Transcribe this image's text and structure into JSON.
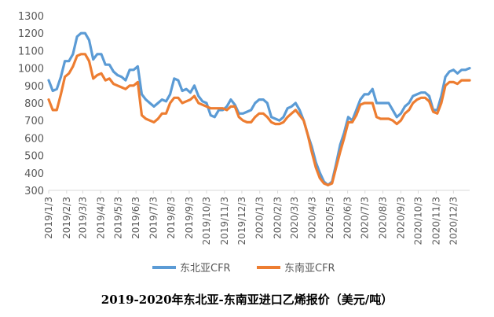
{
  "chart_data": {
    "type": "line",
    "title": "",
    "xlabel": "",
    "ylabel": "",
    "ylim": [
      300,
      1300
    ],
    "yticks": [
      300,
      400,
      500,
      600,
      700,
      800,
      900,
      1000,
      1100,
      1200,
      1300
    ],
    "grid": "none",
    "legend_position": "bottom",
    "x_tick_labels": [
      "2019/1/3",
      "2019/2/3",
      "2019/3/3",
      "2019/4/3",
      "2019/5/3",
      "2019/6/3",
      "2019/7/3",
      "2019/8/3",
      "2019/9/3",
      "2019/10/3",
      "2019/11/3",
      "2019/12/3",
      "2020/1/3",
      "2020/2/3",
      "2020/3/3",
      "2020/4/3",
      "2020/5/3",
      "2020/6/3",
      "2020/7/3",
      "2020/8/3",
      "2020/9/3",
      "2020/10/3",
      "2020/11/3",
      "2020/12/3"
    ],
    "series": [
      {
        "name": "东北亚CFR",
        "color": "#5B9BD5",
        "points": [
          [
            "2019/1/3",
            930
          ],
          [
            "2019/1/10",
            870
          ],
          [
            "2019/1/17",
            880
          ],
          [
            "2019/1/24",
            950
          ],
          [
            "2019/1/31",
            1040
          ],
          [
            "2019/2/7",
            1040
          ],
          [
            "2019/2/14",
            1080
          ],
          [
            "2019/2/21",
            1180
          ],
          [
            "2019/2/28",
            1200
          ],
          [
            "2019/3/7",
            1200
          ],
          [
            "2019/3/14",
            1160
          ],
          [
            "2019/3/21",
            1050
          ],
          [
            "2019/3/28",
            1080
          ],
          [
            "2019/4/4",
            1080
          ],
          [
            "2019/4/11",
            1020
          ],
          [
            "2019/4/18",
            1020
          ],
          [
            "2019/4/25",
            980
          ],
          [
            "2019/5/2",
            960
          ],
          [
            "2019/5/9",
            950
          ],
          [
            "2019/5/16",
            930
          ],
          [
            "2019/5/23",
            990
          ],
          [
            "2019/5/30",
            990
          ],
          [
            "2019/6/6",
            1010
          ],
          [
            "2019/6/13",
            850
          ],
          [
            "2019/6/20",
            820
          ],
          [
            "2019/6/27",
            800
          ],
          [
            "2019/7/4",
            780
          ],
          [
            "2019/7/11",
            800
          ],
          [
            "2019/7/18",
            820
          ],
          [
            "2019/7/25",
            810
          ],
          [
            "2019/8/1",
            850
          ],
          [
            "2019/8/8",
            940
          ],
          [
            "2019/8/15",
            930
          ],
          [
            "2019/8/22",
            870
          ],
          [
            "2019/8/29",
            880
          ],
          [
            "2019/9/5",
            860
          ],
          [
            "2019/9/12",
            900
          ],
          [
            "2019/9/19",
            840
          ],
          [
            "2019/9/26",
            810
          ],
          [
            "2019/10/3",
            800
          ],
          [
            "2019/10/10",
            730
          ],
          [
            "2019/10/17",
            720
          ],
          [
            "2019/10/24",
            760
          ],
          [
            "2019/10/31",
            760
          ],
          [
            "2019/11/7",
            780
          ],
          [
            "2019/11/14",
            820
          ],
          [
            "2019/11/21",
            790
          ],
          [
            "2019/11/28",
            740
          ],
          [
            "2019/12/5",
            740
          ],
          [
            "2019/12/12",
            750
          ],
          [
            "2019/12/19",
            760
          ],
          [
            "2019/12/26",
            800
          ],
          [
            "2020/1/2",
            820
          ],
          [
            "2020/1/9",
            820
          ],
          [
            "2020/1/16",
            800
          ],
          [
            "2020/1/23",
            720
          ],
          [
            "2020/1/30",
            710
          ],
          [
            "2020/2/6",
            700
          ],
          [
            "2020/2/13",
            720
          ],
          [
            "2020/2/20",
            770
          ],
          [
            "2020/2/27",
            780
          ],
          [
            "2020/3/5",
            800
          ],
          [
            "2020/3/12",
            760
          ],
          [
            "2020/3/19",
            700
          ],
          [
            "2020/3/26",
            620
          ],
          [
            "2020/4/2",
            550
          ],
          [
            "2020/4/9",
            460
          ],
          [
            "2020/4/16",
            400
          ],
          [
            "2020/4/23",
            350
          ],
          [
            "2020/4/30",
            330
          ],
          [
            "2020/5/7",
            350
          ],
          [
            "2020/5/14",
            450
          ],
          [
            "2020/5/21",
            560
          ],
          [
            "2020/5/28",
            630
          ],
          [
            "2020/6/4",
            720
          ],
          [
            "2020/6/11",
            700
          ],
          [
            "2020/6/18",
            760
          ],
          [
            "2020/6/25",
            820
          ],
          [
            "2020/7/2",
            850
          ],
          [
            "2020/7/9",
            850
          ],
          [
            "2020/7/16",
            880
          ],
          [
            "2020/7/23",
            800
          ],
          [
            "2020/7/30",
            800
          ],
          [
            "2020/8/6",
            800
          ],
          [
            "2020/8/13",
            800
          ],
          [
            "2020/8/20",
            760
          ],
          [
            "2020/8/27",
            720
          ],
          [
            "2020/9/3",
            740
          ],
          [
            "2020/9/10",
            780
          ],
          [
            "2020/9/17",
            800
          ],
          [
            "2020/9/24",
            840
          ],
          [
            "2020/10/1",
            850
          ],
          [
            "2020/10/8",
            860
          ],
          [
            "2020/10/15",
            860
          ],
          [
            "2020/10/22",
            840
          ],
          [
            "2020/10/29",
            760
          ],
          [
            "2020/11/5",
            760
          ],
          [
            "2020/11/12",
            840
          ],
          [
            "2020/11/19",
            950
          ],
          [
            "2020/11/26",
            980
          ],
          [
            "2020/12/3",
            990
          ],
          [
            "2020/12/10",
            970
          ],
          [
            "2020/12/17",
            990
          ],
          [
            "2020/12/24",
            990
          ],
          [
            "2020/12/31",
            1000
          ]
        ]
      },
      {
        "name": "东南亚CFR",
        "color": "#ED7D31",
        "points": [
          [
            "2019/1/3",
            820
          ],
          [
            "2019/1/10",
            760
          ],
          [
            "2019/1/17",
            760
          ],
          [
            "2019/1/24",
            850
          ],
          [
            "2019/1/31",
            950
          ],
          [
            "2019/2/7",
            970
          ],
          [
            "2019/2/14",
            1010
          ],
          [
            "2019/2/21",
            1070
          ],
          [
            "2019/2/28",
            1080
          ],
          [
            "2019/3/7",
            1080
          ],
          [
            "2019/3/14",
            1040
          ],
          [
            "2019/3/21",
            940
          ],
          [
            "2019/3/28",
            960
          ],
          [
            "2019/4/4",
            970
          ],
          [
            "2019/4/11",
            930
          ],
          [
            "2019/4/18",
            940
          ],
          [
            "2019/4/25",
            910
          ],
          [
            "2019/5/2",
            900
          ],
          [
            "2019/5/9",
            890
          ],
          [
            "2019/5/16",
            880
          ],
          [
            "2019/5/23",
            900
          ],
          [
            "2019/5/30",
            900
          ],
          [
            "2019/6/6",
            920
          ],
          [
            "2019/6/13",
            730
          ],
          [
            "2019/6/20",
            710
          ],
          [
            "2019/6/27",
            700
          ],
          [
            "2019/7/4",
            690
          ],
          [
            "2019/7/11",
            710
          ],
          [
            "2019/7/18",
            740
          ],
          [
            "2019/7/25",
            740
          ],
          [
            "2019/8/1",
            800
          ],
          [
            "2019/8/8",
            830
          ],
          [
            "2019/8/15",
            830
          ],
          [
            "2019/8/22",
            800
          ],
          [
            "2019/8/29",
            810
          ],
          [
            "2019/9/5",
            820
          ],
          [
            "2019/9/12",
            840
          ],
          [
            "2019/9/19",
            800
          ],
          [
            "2019/9/26",
            790
          ],
          [
            "2019/10/3",
            780
          ],
          [
            "2019/10/10",
            770
          ],
          [
            "2019/10/17",
            770
          ],
          [
            "2019/10/24",
            770
          ],
          [
            "2019/10/31",
            770
          ],
          [
            "2019/11/7",
            760
          ],
          [
            "2019/11/14",
            780
          ],
          [
            "2019/11/21",
            780
          ],
          [
            "2019/11/28",
            720
          ],
          [
            "2019/12/5",
            700
          ],
          [
            "2019/12/12",
            690
          ],
          [
            "2019/12/19",
            690
          ],
          [
            "2019/12/26",
            720
          ],
          [
            "2020/1/2",
            740
          ],
          [
            "2020/1/9",
            740
          ],
          [
            "2020/1/16",
            720
          ],
          [
            "2020/1/23",
            690
          ],
          [
            "2020/1/30",
            680
          ],
          [
            "2020/2/6",
            680
          ],
          [
            "2020/2/13",
            690
          ],
          [
            "2020/2/20",
            720
          ],
          [
            "2020/2/27",
            740
          ],
          [
            "2020/3/5",
            760
          ],
          [
            "2020/3/12",
            730
          ],
          [
            "2020/3/19",
            700
          ],
          [
            "2020/3/26",
            620
          ],
          [
            "2020/4/2",
            520
          ],
          [
            "2020/4/9",
            430
          ],
          [
            "2020/4/16",
            370
          ],
          [
            "2020/4/23",
            340
          ],
          [
            "2020/4/30",
            330
          ],
          [
            "2020/5/7",
            340
          ],
          [
            "2020/5/14",
            430
          ],
          [
            "2020/5/21",
            520
          ],
          [
            "2020/5/28",
            600
          ],
          [
            "2020/6/4",
            690
          ],
          [
            "2020/6/11",
            690
          ],
          [
            "2020/6/18",
            730
          ],
          [
            "2020/6/25",
            790
          ],
          [
            "2020/7/2",
            800
          ],
          [
            "2020/7/9",
            800
          ],
          [
            "2020/7/16",
            800
          ],
          [
            "2020/7/23",
            720
          ],
          [
            "2020/7/30",
            710
          ],
          [
            "2020/8/6",
            710
          ],
          [
            "2020/8/13",
            710
          ],
          [
            "2020/8/20",
            700
          ],
          [
            "2020/8/27",
            680
          ],
          [
            "2020/9/3",
            700
          ],
          [
            "2020/9/10",
            740
          ],
          [
            "2020/9/17",
            760
          ],
          [
            "2020/9/24",
            800
          ],
          [
            "2020/10/1",
            820
          ],
          [
            "2020/10/8",
            830
          ],
          [
            "2020/10/15",
            830
          ],
          [
            "2020/10/22",
            810
          ],
          [
            "2020/10/29",
            750
          ],
          [
            "2020/11/5",
            740
          ],
          [
            "2020/11/12",
            800
          ],
          [
            "2020/11/19",
            900
          ],
          [
            "2020/11/26",
            920
          ],
          [
            "2020/12/3",
            920
          ],
          [
            "2020/12/10",
            910
          ],
          [
            "2020/12/17",
            930
          ],
          [
            "2020/12/24",
            930
          ],
          [
            "2020/12/31",
            930
          ]
        ]
      }
    ]
  },
  "caption": "2019-2020年东北亚-东南亚进口乙烯报价（美元/吨）"
}
